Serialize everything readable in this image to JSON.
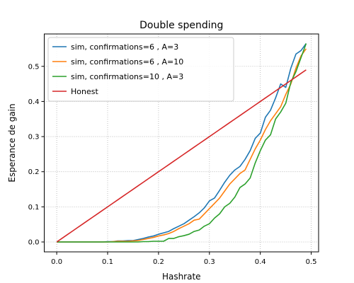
{
  "chart_data": {
    "type": "line",
    "title": "Double spending",
    "xlabel": "Hashrate",
    "ylabel": "Esperance de gain",
    "xlim": [
      -0.0245,
      0.5145
    ],
    "ylim": [
      -0.0282,
      0.5922
    ],
    "xticks": [
      "0.0",
      "0.1",
      "0.2",
      "0.3",
      "0.4",
      "0.5"
    ],
    "yticks": [
      "0.0",
      "0.1",
      "0.2",
      "0.3",
      "0.4",
      "0.5"
    ],
    "grid": true,
    "legend_position": "top-left",
    "x": [
      0.0,
      0.01,
      0.02,
      0.03,
      0.04,
      0.05,
      0.06,
      0.07,
      0.08,
      0.09,
      0.1,
      0.11,
      0.12,
      0.13,
      0.14,
      0.15,
      0.16,
      0.17,
      0.18,
      0.19,
      0.2,
      0.21,
      0.22,
      0.23,
      0.24,
      0.25,
      0.26,
      0.27,
      0.28,
      0.29,
      0.3,
      0.31,
      0.32,
      0.33,
      0.34,
      0.35,
      0.36,
      0.37,
      0.38,
      0.39,
      0.4,
      0.41,
      0.42,
      0.43,
      0.44,
      0.45,
      0.46,
      0.47,
      0.48,
      0.49
    ],
    "series": [
      {
        "name": "sim, confirmations=6 , A=3",
        "color": "#1f77b4",
        "values": [
          0,
          0,
          0,
          0,
          0,
          0,
          0,
          0,
          0,
          0,
          0.001,
          0.001,
          0.003,
          0.003,
          0.004,
          0.004,
          0.007,
          0.01,
          0.014,
          0.017,
          0.022,
          0.026,
          0.03,
          0.038,
          0.045,
          0.052,
          0.062,
          0.072,
          0.083,
          0.097,
          0.117,
          0.125,
          0.147,
          0.17,
          0.19,
          0.205,
          0.215,
          0.235,
          0.26,
          0.295,
          0.31,
          0.355,
          0.375,
          0.41,
          0.45,
          0.44,
          0.495,
          0.535,
          0.545,
          0.565
        ]
      },
      {
        "name": "sim, confirmations=6 , A=10",
        "color": "#ff7f0e",
        "values": [
          0,
          0,
          0,
          0,
          0,
          0,
          0,
          0,
          0,
          0,
          0,
          0.001,
          0.002,
          0.002,
          0.002,
          0.003,
          0.004,
          0.007,
          0.01,
          0.013,
          0.017,
          0.02,
          0.024,
          0.03,
          0.038,
          0.045,
          0.052,
          0.062,
          0.065,
          0.08,
          0.095,
          0.11,
          0.125,
          0.145,
          0.165,
          0.18,
          0.195,
          0.205,
          0.235,
          0.265,
          0.29,
          0.32,
          0.345,
          0.365,
          0.385,
          0.42,
          0.45,
          0.495,
          0.53,
          0.55
        ]
      },
      {
        "name": "sim, confirmations=10 , A=3",
        "color": "#2ca02c",
        "values": [
          0,
          0,
          0,
          0,
          0,
          0,
          0,
          0,
          0,
          0,
          0,
          0,
          0,
          0,
          0,
          0,
          0,
          0.001,
          0.001,
          0.002,
          0.002,
          0.002,
          0.01,
          0.01,
          0.015,
          0.018,
          0.022,
          0.03,
          0.034,
          0.045,
          0.052,
          0.068,
          0.08,
          0.1,
          0.11,
          0.128,
          0.155,
          0.165,
          0.182,
          0.225,
          0.26,
          0.29,
          0.305,
          0.35,
          0.37,
          0.395,
          0.455,
          0.485,
          0.525,
          0.565
        ]
      },
      {
        "name": "Honest",
        "color": "#d62728",
        "values": [
          0,
          0.01,
          0.02,
          0.03,
          0.04,
          0.05,
          0.06,
          0.07,
          0.08,
          0.09,
          0.1,
          0.11,
          0.12,
          0.13,
          0.14,
          0.15,
          0.16,
          0.17,
          0.18,
          0.19,
          0.2,
          0.21,
          0.22,
          0.23,
          0.24,
          0.25,
          0.26,
          0.27,
          0.28,
          0.29,
          0.3,
          0.31,
          0.32,
          0.33,
          0.34,
          0.35,
          0.36,
          0.37,
          0.38,
          0.39,
          0.4,
          0.41,
          0.42,
          0.43,
          0.44,
          0.45,
          0.46,
          0.47,
          0.48,
          0.49
        ]
      }
    ]
  }
}
